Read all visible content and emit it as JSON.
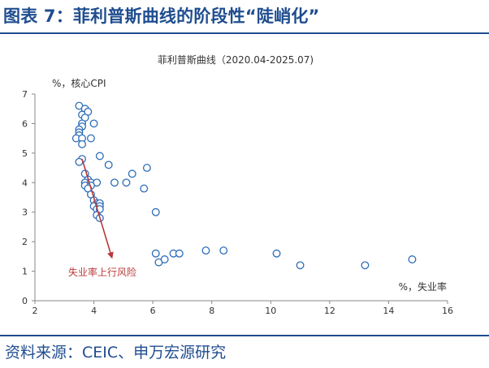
{
  "figure": {
    "title": "图表 7：菲利普斯曲线的阶段性“陡峭化”",
    "source": "资料来源：CEIC、申万宏源研究"
  },
  "colors": {
    "brand": "#1f4d8f",
    "marker": "#2e6db8",
    "arrow": "#b83a3a",
    "axis": "#888888",
    "text": "#333333"
  },
  "chart_data": {
    "type": "scatter",
    "title": "菲利普斯曲线（2020.04-2025.07)",
    "xlabel": "%，失业率",
    "ylabel": "%，核心CPI",
    "xlim": [
      2,
      16
    ],
    "ylim": [
      0,
      7
    ],
    "xticks": [
      2,
      4,
      6,
      8,
      10,
      12,
      14,
      16
    ],
    "yticks": [
      0,
      1,
      2,
      3,
      4,
      5,
      6,
      7
    ],
    "grid": false,
    "legend": "none",
    "series": [
      {
        "points": [
          [
            3.5,
            6.6
          ],
          [
            3.7,
            6.5
          ],
          [
            3.6,
            6.3
          ],
          [
            3.8,
            6.4
          ],
          [
            3.7,
            6.2
          ],
          [
            3.6,
            6.0
          ],
          [
            4.0,
            6.0
          ],
          [
            3.6,
            5.9
          ],
          [
            3.5,
            5.8
          ],
          [
            3.5,
            5.7
          ],
          [
            3.5,
            5.6
          ],
          [
            3.4,
            5.5
          ],
          [
            3.6,
            5.5
          ],
          [
            3.9,
            5.5
          ],
          [
            3.6,
            5.3
          ],
          [
            4.2,
            4.9
          ],
          [
            3.6,
            4.8
          ],
          [
            3.5,
            4.7
          ],
          [
            4.5,
            4.6
          ],
          [
            3.7,
            4.3
          ],
          [
            5.3,
            4.3
          ],
          [
            3.8,
            4.1
          ],
          [
            3.7,
            4.0
          ],
          [
            3.9,
            4.0
          ],
          [
            4.1,
            4.0
          ],
          [
            3.7,
            3.9
          ],
          [
            3.9,
            3.9
          ],
          [
            4.7,
            4.0
          ],
          [
            5.1,
            4.0
          ],
          [
            5.8,
            4.5
          ],
          [
            5.7,
            3.8
          ],
          [
            3.8,
            3.8
          ],
          [
            3.9,
            3.6
          ],
          [
            4.0,
            3.4
          ],
          [
            4.1,
            3.3
          ],
          [
            4.2,
            3.3
          ],
          [
            4.0,
            3.2
          ],
          [
            4.2,
            3.2
          ],
          [
            4.1,
            3.1
          ],
          [
            4.2,
            3.1
          ],
          [
            4.1,
            2.9
          ],
          [
            4.2,
            2.8
          ],
          [
            6.1,
            3.0
          ],
          [
            6.1,
            1.6
          ],
          [
            6.2,
            1.3
          ],
          [
            6.4,
            1.4
          ],
          [
            6.7,
            1.6
          ],
          [
            6.9,
            1.6
          ],
          [
            7.8,
            1.7
          ],
          [
            8.4,
            1.7
          ],
          [
            10.2,
            1.6
          ],
          [
            11.0,
            1.2
          ],
          [
            13.2,
            1.2
          ],
          [
            14.8,
            1.4
          ]
        ]
      }
    ],
    "annotation": {
      "text": "失业率上行风险",
      "arrow_from": [
        3.6,
        4.8
      ],
      "arrow_to": [
        4.6,
        1.5
      ]
    }
  }
}
